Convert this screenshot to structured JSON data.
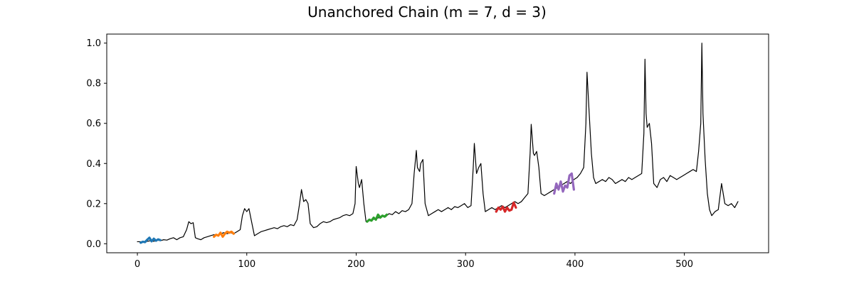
{
  "chart_data": {
    "type": "line",
    "title": "Unanchored Chain (m = 7, d = 3)",
    "xlabel": "",
    "ylabel": "",
    "xlim": [
      -28,
      577
    ],
    "ylim": [
      -0.045,
      1.045
    ],
    "xticks": [
      0,
      100,
      200,
      300,
      400,
      500
    ],
    "yticks": [
      0.0,
      0.2,
      0.4,
      0.6,
      0.8,
      1.0
    ],
    "xtick_labels": [
      "0",
      "100",
      "200",
      "300",
      "400",
      "500"
    ],
    "ytick_labels": [
      "0.0",
      "0.2",
      "0.4",
      "0.6",
      "0.8",
      "1.0"
    ],
    "grid": false,
    "legend": "none",
    "series": [
      {
        "role": "time-series",
        "color": "#000000",
        "x": [
          0,
          3,
          6,
          9,
          12,
          15,
          18,
          21,
          24,
          27,
          30,
          33,
          36,
          39,
          42,
          45,
          47,
          49,
          51,
          53,
          55,
          58,
          61,
          64,
          67,
          70,
          73,
          76,
          79,
          82,
          85,
          88,
          91,
          94,
          96,
          98,
          100,
          102,
          104,
          107,
          110,
          113,
          116,
          119,
          122,
          125,
          128,
          131,
          134,
          137,
          140,
          143,
          146,
          148,
          150,
          152,
          154,
          156,
          158,
          161,
          164,
          167,
          170,
          173,
          176,
          179,
          182,
          185,
          188,
          191,
          194,
          197,
          199,
          200,
          202,
          203,
          205,
          207,
          209,
          212,
          215,
          218,
          221,
          224,
          227,
          230,
          233,
          236,
          239,
          242,
          245,
          248,
          251,
          253,
          255,
          256,
          258,
          259,
          261,
          263,
          266,
          269,
          272,
          275,
          278,
          281,
          284,
          287,
          290,
          293,
          296,
          299,
          302,
          305,
          307,
          308,
          310,
          312,
          314,
          316,
          318,
          321,
          324,
          327,
          330,
          333,
          336,
          339,
          342,
          345,
          348,
          351,
          354,
          357,
          359,
          360,
          362,
          363,
          365,
          367,
          369,
          372,
          375,
          378,
          381,
          384,
          387,
          390,
          393,
          396,
          399,
          402,
          405,
          408,
          410,
          411,
          413,
          415,
          417,
          419,
          422,
          425,
          428,
          431,
          434,
          437,
          440,
          443,
          446,
          449,
          452,
          455,
          458,
          461,
          463,
          464,
          465,
          466,
          468,
          470,
          472,
          475,
          478,
          481,
          484,
          487,
          490,
          493,
          496,
          499,
          502,
          505,
          508,
          511,
          513,
          515,
          516,
          517,
          519,
          521,
          523,
          525,
          528,
          531,
          534,
          537,
          540,
          543,
          546,
          549
        ],
        "y": [
          0.01,
          0.01,
          0.008,
          0.012,
          0.015,
          0.012,
          0.018,
          0.015,
          0.02,
          0.018,
          0.025,
          0.03,
          0.02,
          0.03,
          0.035,
          0.07,
          0.11,
          0.1,
          0.105,
          0.03,
          0.025,
          0.02,
          0.03,
          0.035,
          0.04,
          0.045,
          0.04,
          0.05,
          0.055,
          0.05,
          0.055,
          0.05,
          0.06,
          0.07,
          0.14,
          0.175,
          0.16,
          0.175,
          0.12,
          0.04,
          0.05,
          0.06,
          0.065,
          0.07,
          0.075,
          0.08,
          0.075,
          0.085,
          0.09,
          0.085,
          0.095,
          0.09,
          0.12,
          0.19,
          0.27,
          0.21,
          0.22,
          0.2,
          0.1,
          0.08,
          0.085,
          0.1,
          0.11,
          0.105,
          0.11,
          0.12,
          0.125,
          0.13,
          0.14,
          0.145,
          0.14,
          0.15,
          0.2,
          0.385,
          0.3,
          0.28,
          0.32,
          0.2,
          0.11,
          0.115,
          0.12,
          0.125,
          0.13,
          0.14,
          0.135,
          0.15,
          0.145,
          0.16,
          0.15,
          0.165,
          0.16,
          0.17,
          0.2,
          0.35,
          0.465,
          0.38,
          0.36,
          0.4,
          0.42,
          0.2,
          0.14,
          0.15,
          0.16,
          0.17,
          0.16,
          0.17,
          0.18,
          0.17,
          0.185,
          0.18,
          0.19,
          0.2,
          0.18,
          0.19,
          0.38,
          0.5,
          0.35,
          0.38,
          0.4,
          0.25,
          0.16,
          0.17,
          0.18,
          0.17,
          0.18,
          0.19,
          0.18,
          0.19,
          0.2,
          0.21,
          0.2,
          0.21,
          0.23,
          0.25,
          0.45,
          0.595,
          0.45,
          0.44,
          0.46,
          0.38,
          0.25,
          0.24,
          0.25,
          0.26,
          0.27,
          0.28,
          0.29,
          0.3,
          0.31,
          0.3,
          0.32,
          0.33,
          0.35,
          0.38,
          0.6,
          0.855,
          0.65,
          0.45,
          0.33,
          0.3,
          0.31,
          0.32,
          0.31,
          0.33,
          0.32,
          0.3,
          0.31,
          0.32,
          0.31,
          0.33,
          0.32,
          0.33,
          0.34,
          0.35,
          0.55,
          0.92,
          0.65,
          0.58,
          0.6,
          0.5,
          0.3,
          0.28,
          0.32,
          0.33,
          0.31,
          0.34,
          0.33,
          0.32,
          0.33,
          0.34,
          0.35,
          0.36,
          0.37,
          0.36,
          0.46,
          0.6,
          1.0,
          0.65,
          0.42,
          0.25,
          0.17,
          0.14,
          0.16,
          0.17,
          0.3,
          0.2,
          0.19,
          0.2,
          0.18,
          0.21
        ]
      },
      {
        "role": "chain-link",
        "color": "#1f77b4",
        "x": [
          3,
          5,
          7,
          9,
          11,
          13,
          15,
          17,
          19,
          21
        ],
        "y": [
          0.005,
          0.01,
          0.008,
          0.02,
          0.03,
          0.012,
          0.025,
          0.015,
          0.022,
          0.018
        ]
      },
      {
        "role": "chain-link",
        "color": "#ff7f0e",
        "x": [
          70,
          72,
          74,
          76,
          78,
          80,
          82,
          84,
          86,
          88
        ],
        "y": [
          0.035,
          0.045,
          0.04,
          0.055,
          0.035,
          0.05,
          0.06,
          0.055,
          0.06,
          0.05
        ]
      },
      {
        "role": "chain-link",
        "color": "#2ca02c",
        "x": [
          210,
          212,
          214,
          216,
          218,
          220,
          222,
          224,
          226,
          228
        ],
        "y": [
          0.11,
          0.12,
          0.115,
          0.13,
          0.12,
          0.145,
          0.13,
          0.14,
          0.135,
          0.145
        ]
      },
      {
        "role": "chain-link",
        "color": "#d62728",
        "x": [
          328,
          330,
          332,
          334,
          336,
          338,
          340,
          342,
          344,
          346
        ],
        "y": [
          0.16,
          0.18,
          0.17,
          0.185,
          0.16,
          0.18,
          0.165,
          0.17,
          0.205,
          0.18
        ]
      },
      {
        "role": "chain-link",
        "color": "#9467bd",
        "x": [
          381,
          383,
          385,
          387,
          389,
          391,
          393,
          395,
          397,
          399
        ],
        "y": [
          0.25,
          0.3,
          0.27,
          0.31,
          0.26,
          0.29,
          0.28,
          0.34,
          0.35,
          0.27
        ]
      }
    ]
  }
}
